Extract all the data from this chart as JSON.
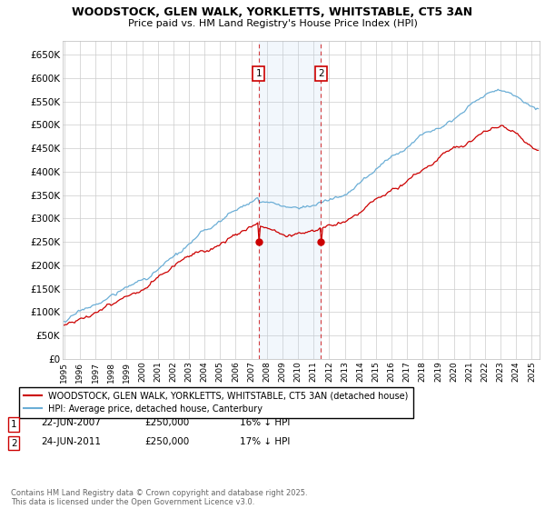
{
  "title_line1": "WOODSTOCK, GLEN WALK, YORKLETTS, WHITSTABLE, CT5 3AN",
  "title_line2": "Price paid vs. HM Land Registry's House Price Index (HPI)",
  "ylim": [
    0,
    680000
  ],
  "yticks": [
    0,
    50000,
    100000,
    150000,
    200000,
    250000,
    300000,
    350000,
    400000,
    450000,
    500000,
    550000,
    600000,
    650000
  ],
  "ytick_labels": [
    "£0",
    "£50K",
    "£100K",
    "£150K",
    "£200K",
    "£250K",
    "£300K",
    "£350K",
    "£400K",
    "£450K",
    "£500K",
    "£550K",
    "£600K",
    "£650K"
  ],
  "hpi_color": "#6baed6",
  "price_color": "#cc0000",
  "sale1_year": 2007.47,
  "sale2_year": 2011.47,
  "sale1_price": 250000,
  "sale2_price": 250000,
  "legend_line1": "WOODSTOCK, GLEN WALK, YORKLETTS, WHITSTABLE, CT5 3AN (detached house)",
  "legend_line2": "HPI: Average price, detached house, Canterbury",
  "footer": "Contains HM Land Registry data © Crown copyright and database right 2025.\nThis data is licensed under the Open Government Licence v3.0.",
  "background_color": "#ffffff",
  "grid_color": "#cccccc",
  "shade_color": "#ddeeff",
  "xmin": 1995,
  "xmax": 2025
}
